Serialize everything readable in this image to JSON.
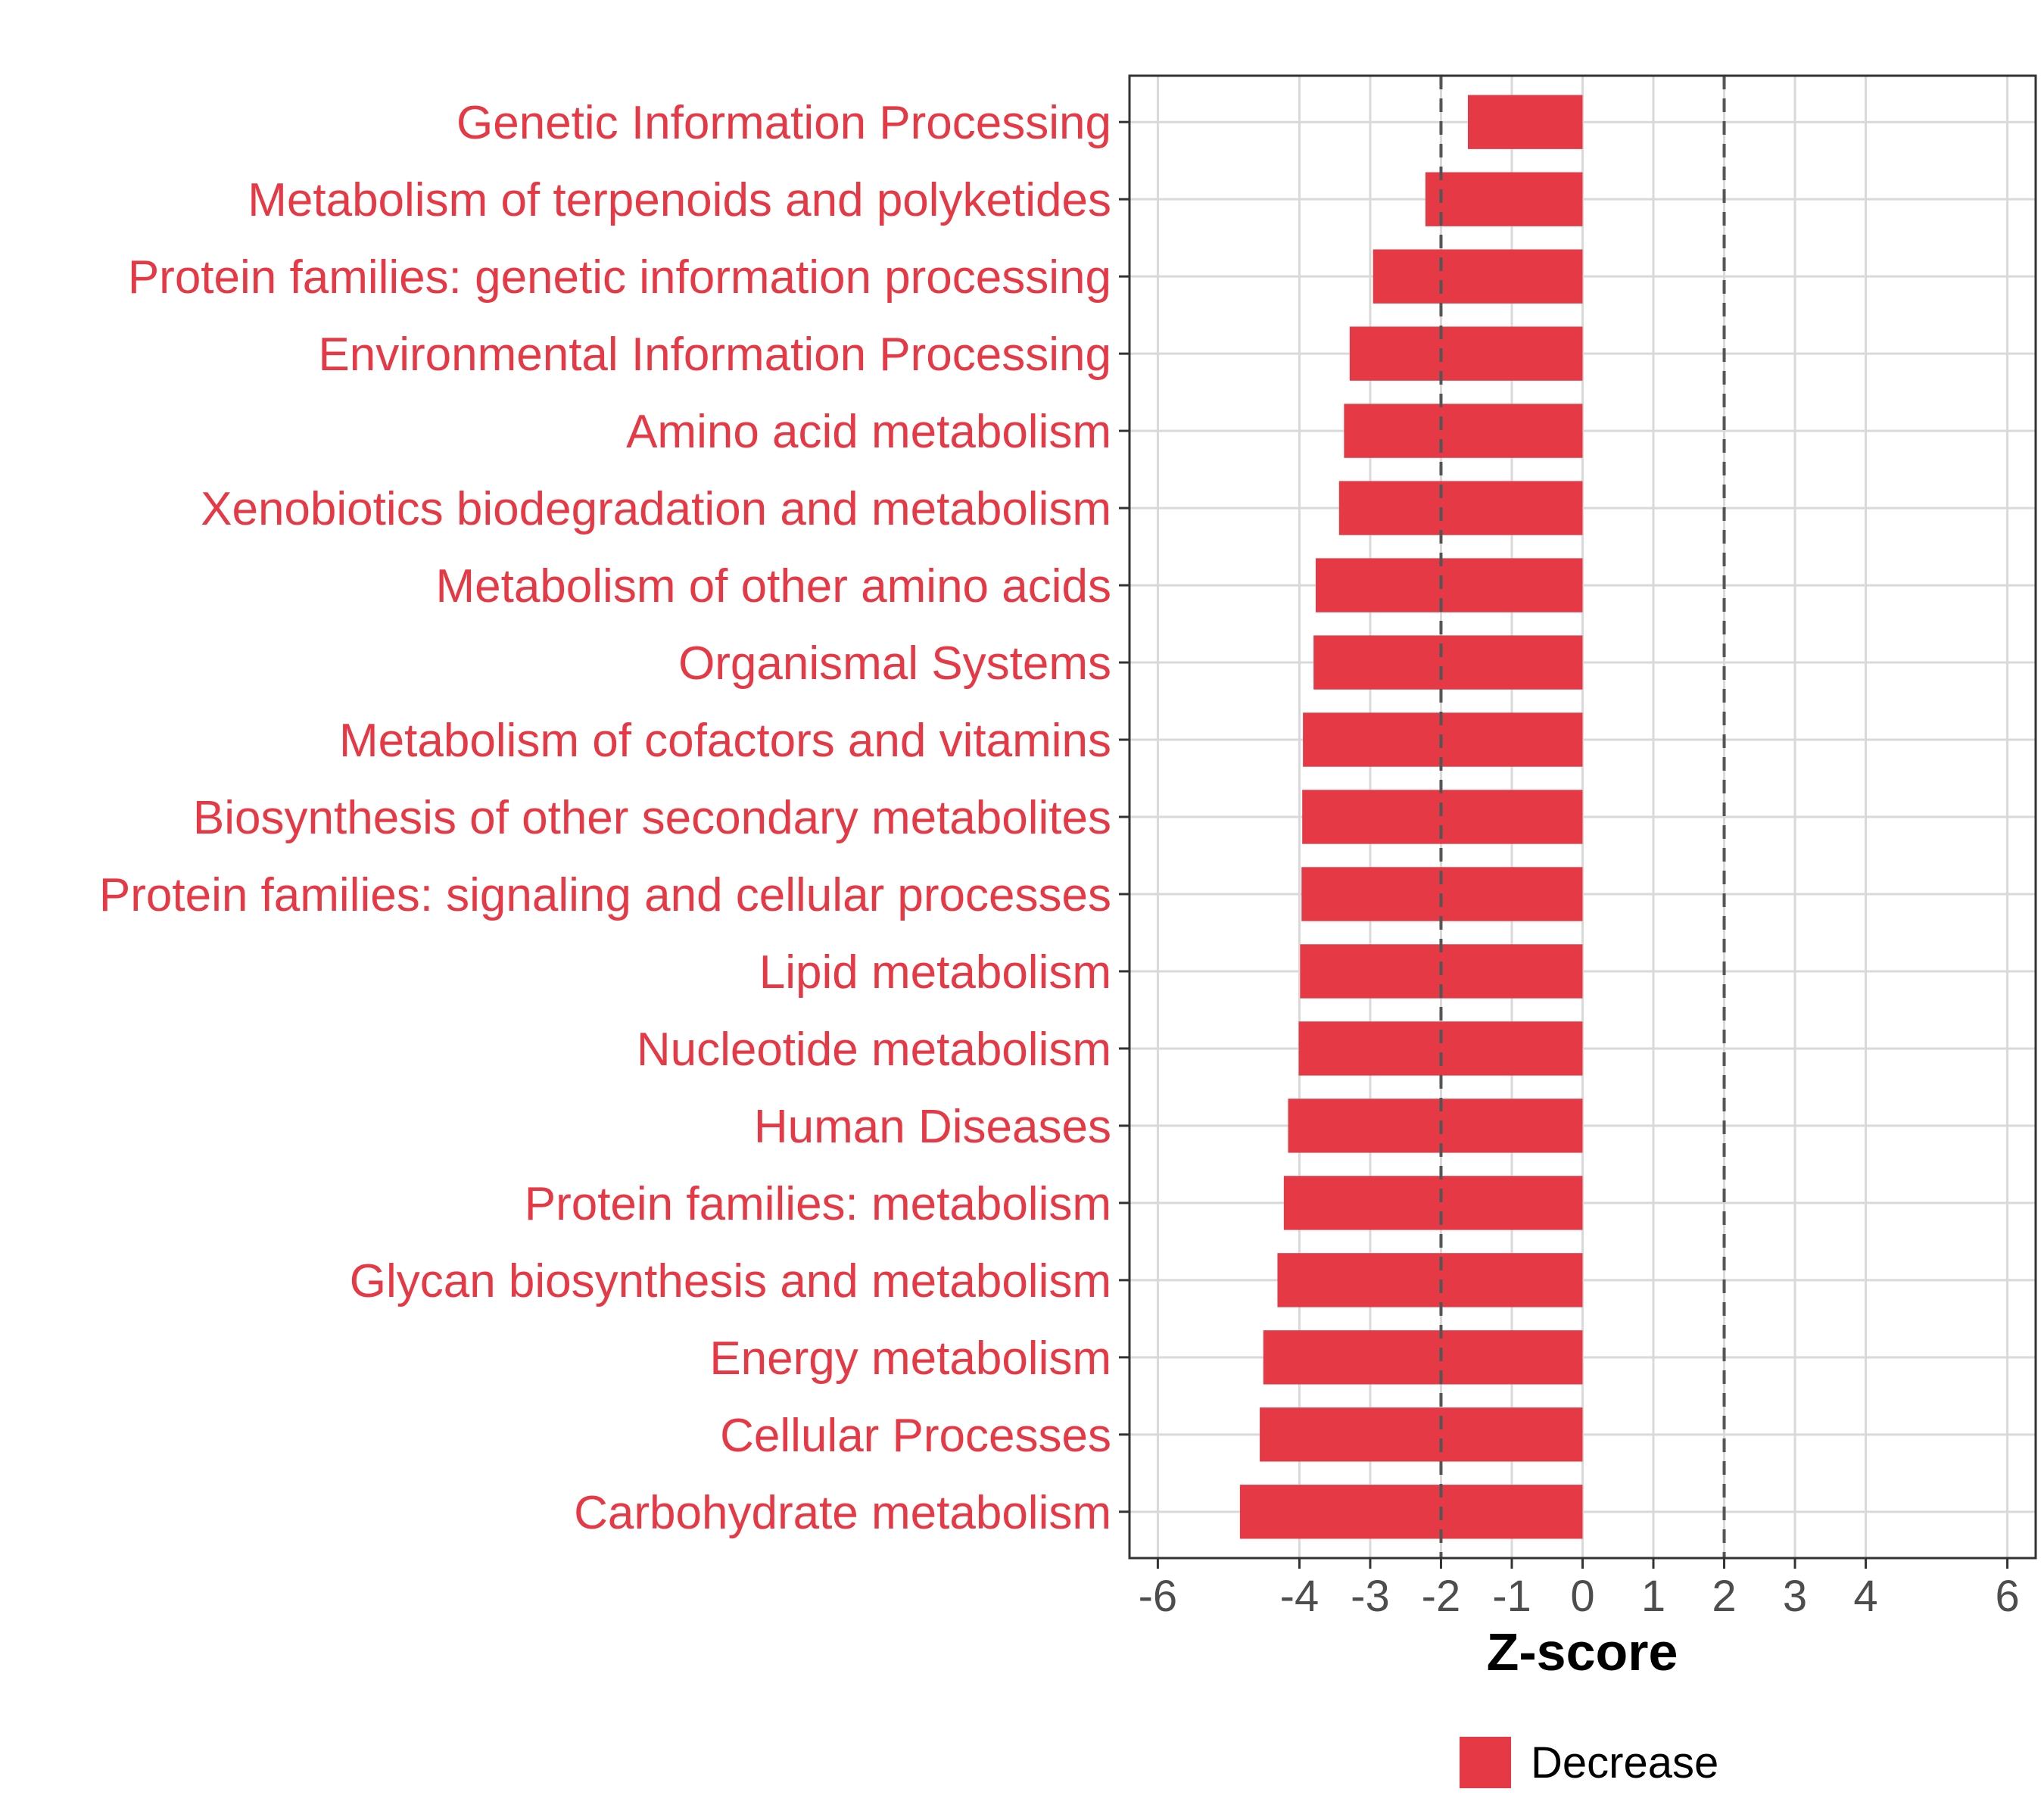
{
  "chart_data": {
    "type": "bar",
    "orientation": "horizontal",
    "categories": [
      "Genetic Information Processing",
      "Metabolism of terpenoids and polyketides",
      "Protein families: genetic information processing",
      "Environmental Information Processing",
      "Amino acid metabolism",
      "Xenobiotics biodegradation and metabolism",
      "Metabolism of other amino acids",
      "Organismal Systems",
      "Metabolism of cofactors and vitamins",
      "Biosynthesis of other secondary metabolites",
      "Protein families: signaling and cellular processes",
      "Lipid metabolism",
      "Nucleotide metabolism",
      "Human Diseases",
      "Protein families: metabolism",
      "Glycan biosynthesis and metabolism",
      "Energy metabolism",
      "Cellular Processes",
      "Carbohydrate metabolism"
    ],
    "values": [
      -1.62,
      -2.22,
      -2.96,
      -3.29,
      -3.37,
      -3.44,
      -3.77,
      -3.8,
      -3.95,
      -3.96,
      -3.97,
      -3.99,
      -4.01,
      -4.16,
      -4.22,
      -4.31,
      -4.51,
      -4.56,
      -4.84
    ],
    "xlabel": "Z-score",
    "ylabel": "",
    "xlim": [
      -6.4,
      6.4
    ],
    "xticks": [
      "-6",
      "-4",
      "-3",
      "-2",
      "-1",
      "0",
      "1",
      "2",
      "3",
      "4",
      "6"
    ],
    "reference_lines": [
      -2,
      2
    ],
    "grid": true,
    "legend": {
      "position": "bottom",
      "entries": [
        {
          "label": "Decrease",
          "color": "#e63946"
        }
      ]
    },
    "colors": {
      "bar": "#e63946",
      "label": "#e63946",
      "grid": "#d9d9d9",
      "reference_line": "#555555"
    }
  }
}
